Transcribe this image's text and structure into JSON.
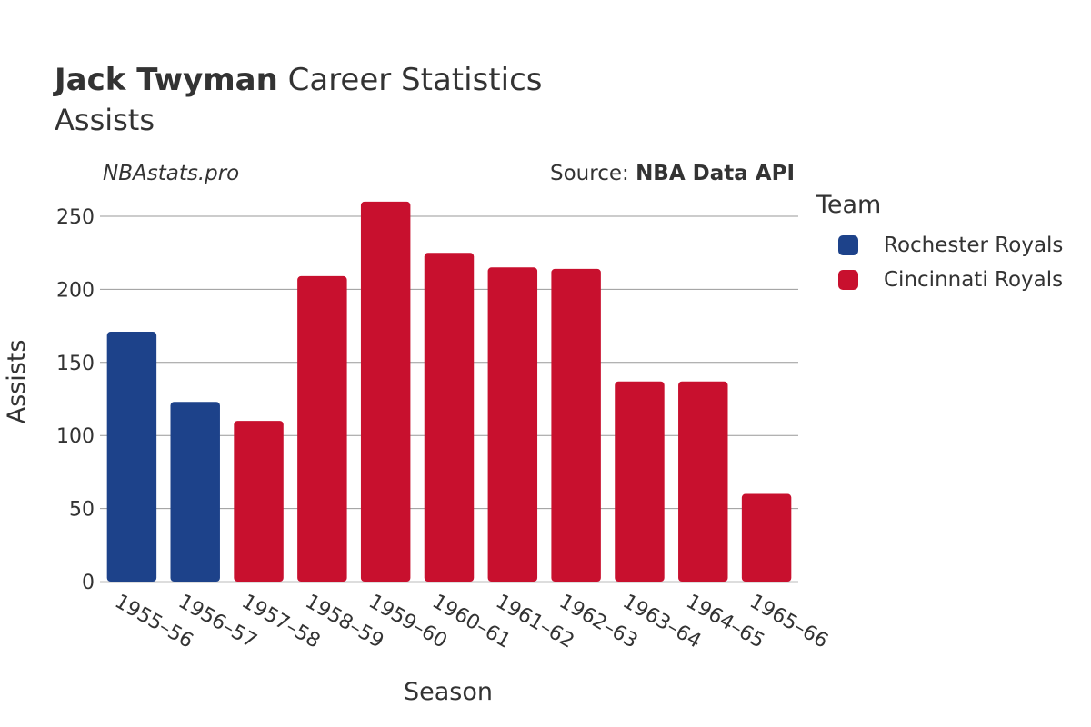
{
  "header": {
    "title_bold": "Jack Twyman",
    "title_rest": " Career Statistics",
    "subtitle": "Assists",
    "watermark": "NBAstats.pro",
    "source_label": "Source: ",
    "source_value": "NBA Data API"
  },
  "legend": {
    "title": "Team",
    "items": [
      {
        "label": "Rochester Royals",
        "color": "#1d428a"
      },
      {
        "label": "Cincinnati Royals",
        "color": "#c8102e"
      }
    ]
  },
  "chart_data": {
    "type": "bar",
    "title": "Jack Twyman Career Statistics",
    "subtitle": "Assists",
    "xlabel": "Season",
    "ylabel": "Assists",
    "ylim": [
      0,
      265
    ],
    "yticks": [
      0,
      50,
      100,
      150,
      200,
      250
    ],
    "grid": true,
    "legend_position": "right",
    "categories": [
      "1955–56",
      "1956–57",
      "1957–58",
      "1958–59",
      "1959–60",
      "1960–61",
      "1961–62",
      "1962–63",
      "1963–64",
      "1964–65",
      "1965–66"
    ],
    "values": [
      171,
      123,
      110,
      209,
      260,
      225,
      215,
      214,
      137,
      137,
      60
    ],
    "teams": [
      "Rochester Royals",
      "Rochester Royals",
      "Cincinnati Royals",
      "Cincinnati Royals",
      "Cincinnati Royals",
      "Cincinnati Royals",
      "Cincinnati Royals",
      "Cincinnati Royals",
      "Cincinnati Royals",
      "Cincinnati Royals",
      "Cincinnati Royals"
    ],
    "colors": {
      "Rochester Royals": "#1d428a",
      "Cincinnati Royals": "#c8102e"
    }
  }
}
